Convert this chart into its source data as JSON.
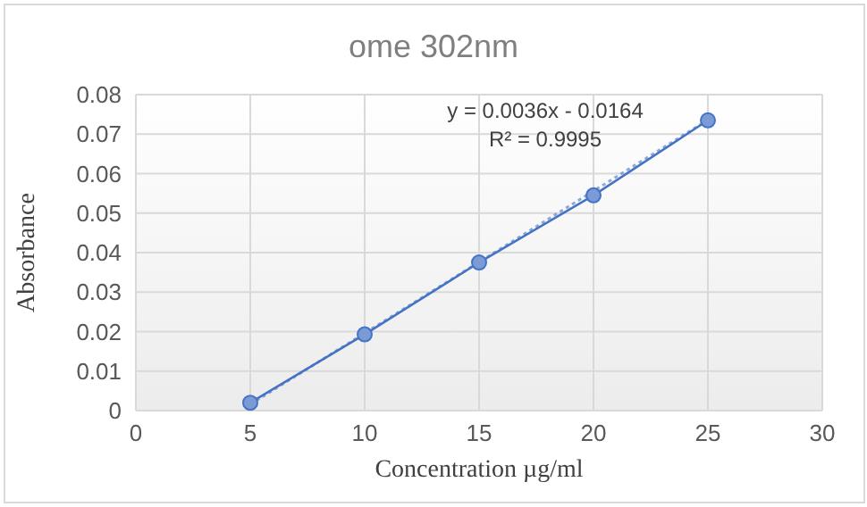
{
  "chart_data": {
    "type": "line",
    "title": "ome 302nm",
    "xlabel": "Concentration µg/ml",
    "ylabel": "Absorbance",
    "series": [
      {
        "color": "#4472c4",
        "x": [
          5,
          10,
          15,
          20,
          25
        ],
        "values": [
          0.002,
          0.0193,
          0.0375,
          0.0545,
          0.0735
        ],
        "marker": "circle",
        "line_style": "solid"
      },
      {
        "color": "#4472c4",
        "x": [
          5,
          25
        ],
        "values": [
          0.0016,
          0.0736
        ],
        "marker": "none",
        "line_style": "dotted"
      }
    ],
    "annotations": [
      "y = 0.0036x - 0.0164",
      "R² = 0.9995"
    ],
    "xlim": [
      0,
      30
    ],
    "xticks": [
      0,
      5,
      10,
      15,
      20,
      25,
      30
    ],
    "ylim": [
      0,
      0.08
    ],
    "yticks": [
      0,
      0.01,
      0.02,
      0.03,
      0.04,
      0.05,
      0.06,
      0.07,
      0.08
    ],
    "grid": true
  }
}
